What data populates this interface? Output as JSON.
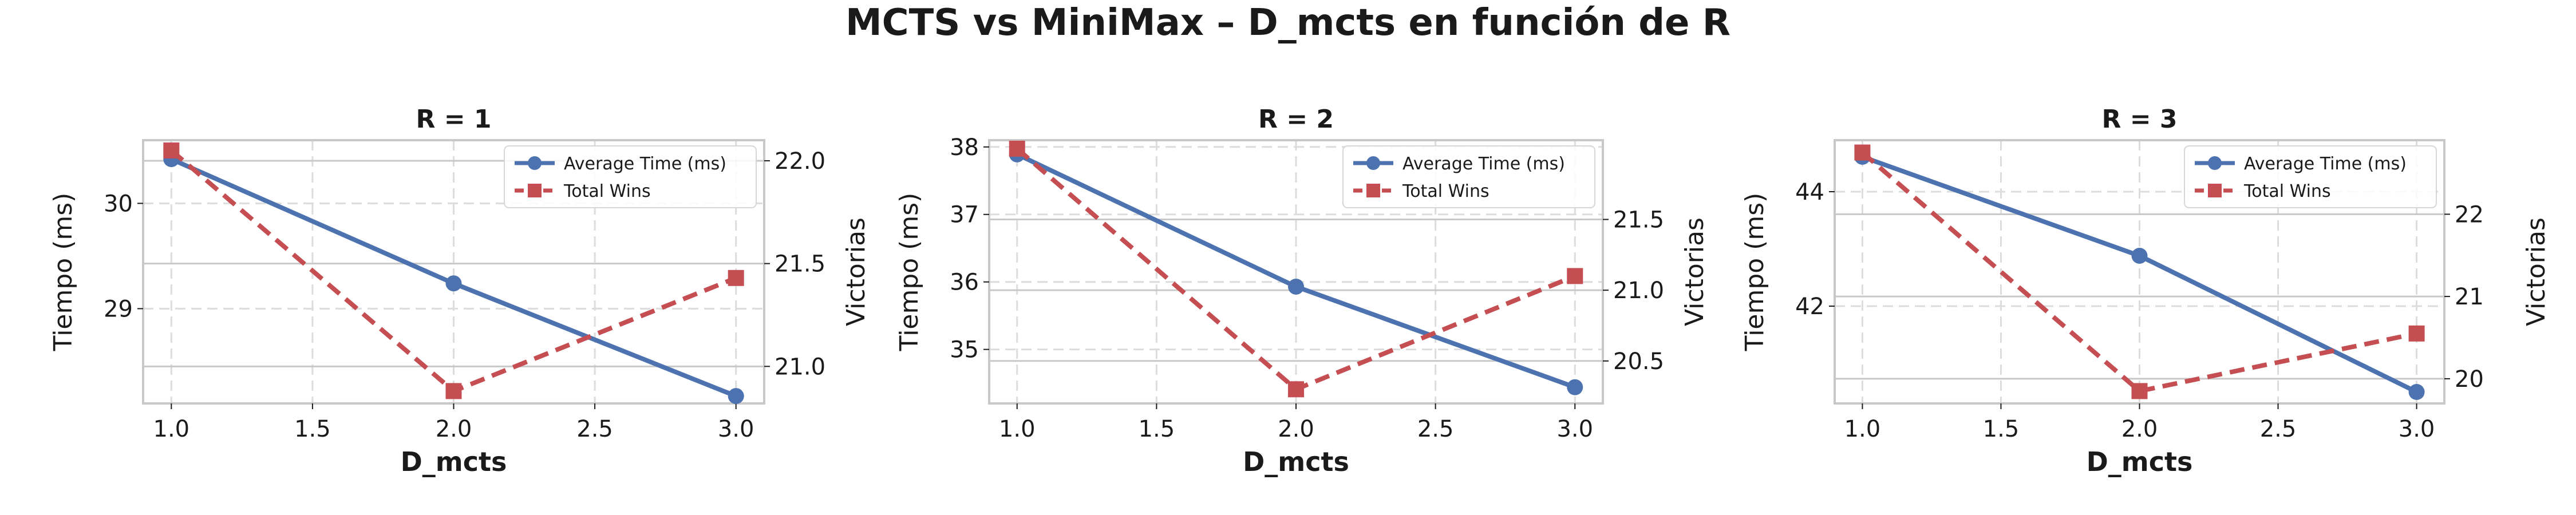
{
  "figure": {
    "title": "MCTS vs MiniMax – D_mcts en función de R"
  },
  "colors": {
    "time": "#4c72b0",
    "wins": "#c44e52",
    "grid": "#dcdcdc",
    "hgrid": "#c8c8c8",
    "spine": "#c8c8c8",
    "text": "#1a1a1a"
  },
  "chart_data": [
    {
      "type": "line",
      "title": "R = 1",
      "xlabel": "D_mcts",
      "ylabel_left": "Tiempo (ms)",
      "ylabel_right": "Victorias",
      "x": [
        1.0,
        2.0,
        3.0
      ],
      "xlim": [
        0.9,
        3.1
      ],
      "x_ticks": [
        "1.0",
        "1.5",
        "2.0",
        "2.5",
        "3.0"
      ],
      "x_tick_values": [
        1.0,
        1.5,
        2.0,
        2.5,
        3.0
      ],
      "ylim_left": [
        28.1,
        30.6
      ],
      "y_ticks_left": [
        "29",
        "30"
      ],
      "y_tick_values_left": [
        29,
        30
      ],
      "ylim_right": [
        20.82,
        22.1
      ],
      "y_ticks_right": [
        "21.0",
        "21.5",
        "22.0"
      ],
      "y_tick_values_right": [
        21.0,
        21.5,
        22.0
      ],
      "legend_loc": "top-right",
      "series": [
        {
          "name": "Average Time (ms)",
          "axis": "left",
          "values": [
            30.42,
            29.24,
            28.17
          ]
        },
        {
          "name": "Total Wins",
          "axis": "right",
          "values": [
            22.05,
            20.88,
            21.43
          ]
        }
      ]
    },
    {
      "type": "line",
      "title": "R = 2",
      "xlabel": "D_mcts",
      "ylabel_left": "Tiempo (ms)",
      "ylabel_right": "Victorias",
      "x": [
        1.0,
        2.0,
        3.0
      ],
      "xlim": [
        0.9,
        3.1
      ],
      "x_ticks": [
        "1.0",
        "1.5",
        "2.0",
        "2.5",
        "3.0"
      ],
      "x_tick_values": [
        1.0,
        1.5,
        2.0,
        2.5,
        3.0
      ],
      "ylim_left": [
        34.2,
        38.1
      ],
      "y_ticks_left": [
        "35",
        "36",
        "37",
        "38"
      ],
      "y_tick_values_left": [
        35,
        36,
        37,
        38
      ],
      "ylim_right": [
        20.2,
        22.06
      ],
      "y_ticks_right": [
        "20.5",
        "21.0",
        "21.5"
      ],
      "y_tick_values_right": [
        20.5,
        21.0,
        21.5
      ],
      "legend_loc": "top-right",
      "series": [
        {
          "name": "Average Time (ms)",
          "axis": "left",
          "values": [
            37.89,
            35.93,
            34.44
          ]
        },
        {
          "name": "Total Wins",
          "axis": "right",
          "values": [
            22.0,
            20.3,
            21.1
          ]
        }
      ]
    },
    {
      "type": "line",
      "title": "R = 3",
      "xlabel": "D_mcts",
      "ylabel_left": "Tiempo (ms)",
      "ylabel_right": "Victorias",
      "x": [
        1.0,
        2.0,
        3.0
      ],
      "xlim": [
        0.9,
        3.1
      ],
      "x_ticks": [
        "1.0",
        "1.5",
        "2.0",
        "2.5",
        "3.0"
      ],
      "x_tick_values": [
        1.0,
        1.5,
        2.0,
        2.5,
        3.0
      ],
      "ylim_left": [
        40.3,
        44.9
      ],
      "y_ticks_left": [
        "42",
        "44"
      ],
      "y_tick_values_left": [
        42,
        44
      ],
      "ylim_right": [
        19.7,
        22.9
      ],
      "y_ticks_right": [
        "20",
        "21",
        "22"
      ],
      "y_tick_values_right": [
        20,
        21,
        22
      ],
      "legend_loc": "top-right",
      "series": [
        {
          "name": "Average Time (ms)",
          "axis": "left",
          "values": [
            44.61,
            42.88,
            40.5
          ]
        },
        {
          "name": "Total Wins",
          "axis": "right",
          "values": [
            22.75,
            19.85,
            20.55
          ]
        }
      ]
    }
  ]
}
